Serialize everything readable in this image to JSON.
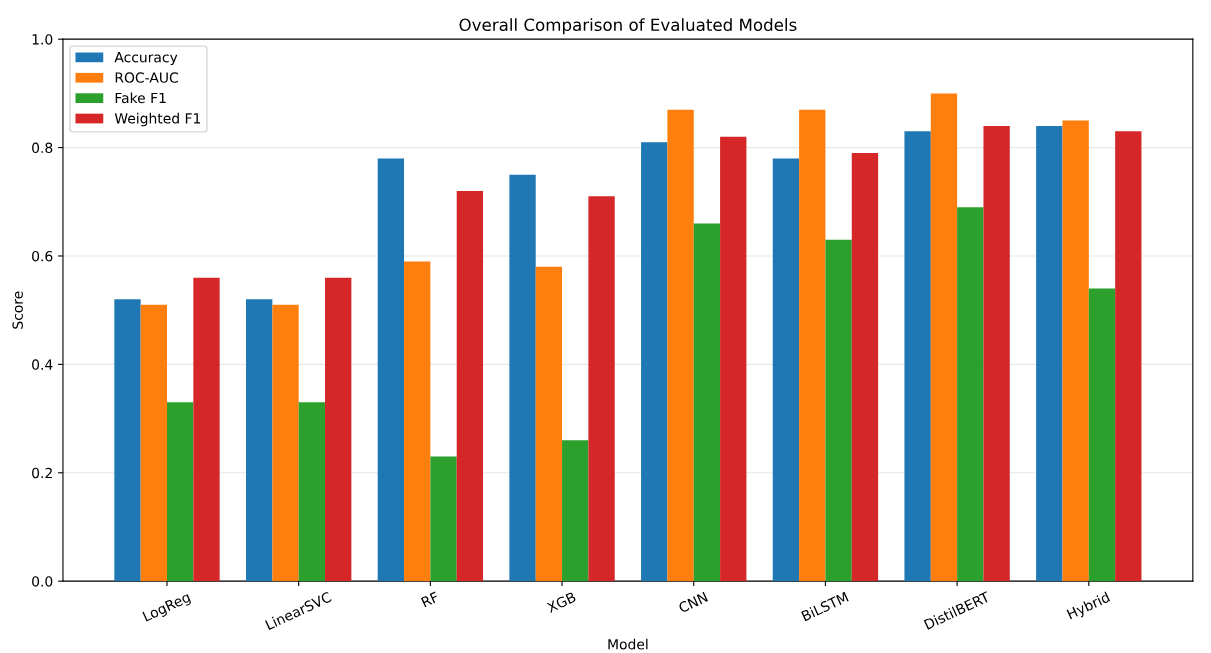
{
  "chart_data": {
    "type": "bar",
    "title": "Overall Comparison of Evaluated Models",
    "xlabel": "Model",
    "ylabel": "Score",
    "categories": [
      "LogReg",
      "LinearSVC",
      "RF",
      "XGB",
      "CNN",
      "BiLSTM",
      "DistilBERT",
      "Hybrid"
    ],
    "series": [
      {
        "name": "Accuracy",
        "color": "#1f77b4",
        "values": [
          0.52,
          0.52,
          0.78,
          0.75,
          0.81,
          0.78,
          0.83,
          0.84
        ]
      },
      {
        "name": "ROC-AUC",
        "color": "#ff7f0e",
        "values": [
          0.51,
          0.51,
          0.59,
          0.58,
          0.87,
          0.87,
          0.9,
          0.85
        ]
      },
      {
        "name": "Fake F1",
        "color": "#2ca02c",
        "values": [
          0.33,
          0.33,
          0.23,
          0.26,
          0.66,
          0.63,
          0.69,
          0.54
        ]
      },
      {
        "name": "Weighted F1",
        "color": "#d62728",
        "values": [
          0.56,
          0.56,
          0.72,
          0.71,
          0.82,
          0.79,
          0.84,
          0.83
        ]
      }
    ],
    "ylim": [
      0,
      1
    ],
    "yticks": [
      {
        "value": 0,
        "label": "0.0"
      },
      0.2,
      0.4,
      0.6,
      0.8,
      {
        "value": 1,
        "label": "1.0"
      }
    ],
    "grid": "y",
    "legend": "top left"
  }
}
